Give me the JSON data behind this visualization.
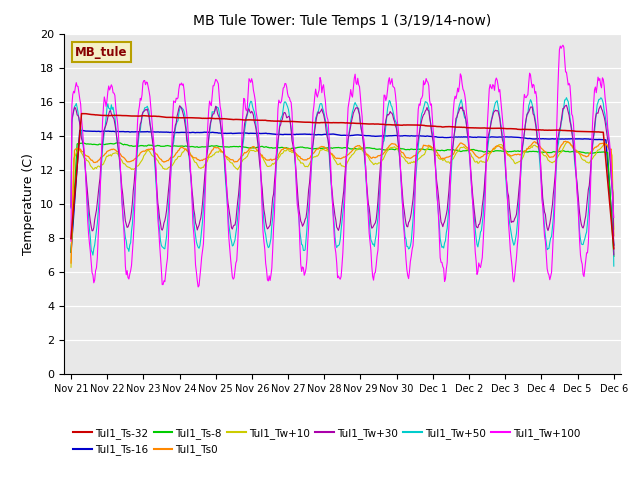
{
  "title": "MB Tule Tower: Tule Temps 1 (3/19/14-now)",
  "ylabel": "Temperature (C)",
  "ylim": [
    0,
    20
  ],
  "yticks": [
    0,
    2,
    4,
    6,
    8,
    10,
    12,
    14,
    16,
    18,
    20
  ],
  "bg_color": "#e8e8e8",
  "legend_label": "MB_tule",
  "legend_bg": "#f5f0c8",
  "legend_border": "#b8a000",
  "series_colors": {
    "Tul1_Ts-32": "#cc0000",
    "Tul1_Ts-16": "#0000cc",
    "Tul1_Ts-8": "#00cc00",
    "Tul1_Ts0": "#ff8800",
    "Tul1_Tw+10": "#cccc00",
    "Tul1_Tw+30": "#aa00aa",
    "Tul1_Tw+50": "#00cccc",
    "Tul1_Tw+100": "#ff00ff"
  },
  "xtick_labels": [
    "Nov 21",
    "Nov 22",
    "Nov 23",
    "Nov 24",
    "Nov 25",
    "Nov 26",
    "Nov 27",
    "Nov 28",
    "Nov 29",
    "Nov 30",
    "Dec 1",
    "Dec 2",
    "Dec 3",
    "Dec 4",
    "Dec 5",
    "Dec 6"
  ],
  "n_days": 15.5,
  "n_points": 620
}
